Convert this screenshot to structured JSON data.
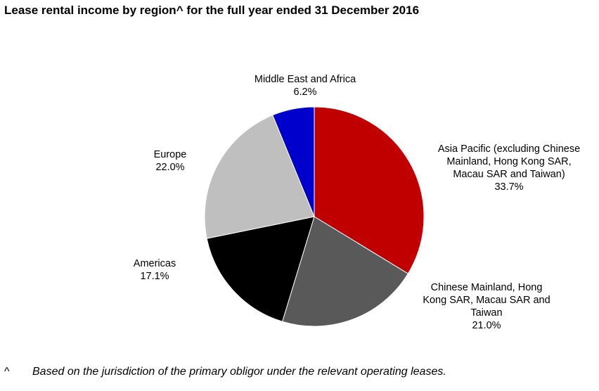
{
  "title": "Lease rental income by region^ for the full year ended 31 December 2016",
  "footnote": {
    "marker": "^",
    "text": "Based on the jurisdiction of the primary obligor under the relevant operating leases."
  },
  "chart_data": {
    "type": "pie",
    "title": "Lease rental income by region^ for the full year ended 31 December 2016",
    "start_angle_deg": 0,
    "direction": "clockwise",
    "legend": "none",
    "slices": [
      {
        "id": "apac",
        "label_lines": [
          "Asia Pacific (excluding Chinese",
          "Mainland, Hong Kong SAR,",
          "Macau SAR and Taiwan)"
        ],
        "value": 33.7,
        "value_label": "33.7%",
        "color": "#c00000"
      },
      {
        "id": "china",
        "label_lines": [
          "Chinese Mainland, Hong",
          "Kong SAR, Macau SAR and",
          "Taiwan"
        ],
        "value": 21.0,
        "value_label": "21.0%",
        "color": "#595959"
      },
      {
        "id": "americas",
        "label_lines": [
          "Americas"
        ],
        "value": 17.1,
        "value_label": "17.1%",
        "color": "#000000"
      },
      {
        "id": "europe",
        "label_lines": [
          "Europe"
        ],
        "value": 22.0,
        "value_label": "22.0%",
        "color": "#bfbfbf"
      },
      {
        "id": "mea",
        "label_lines": [
          "Middle East and Africa"
        ],
        "value": 6.2,
        "value_label": "6.2%",
        "color": "#0000cc"
      }
    ]
  }
}
